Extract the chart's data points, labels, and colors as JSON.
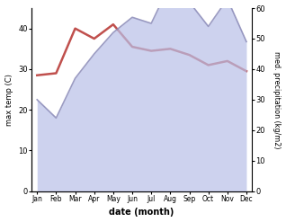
{
  "months": [
    "Jan",
    "Feb",
    "Mar",
    "Apr",
    "May",
    "Jun",
    "Jul",
    "Aug",
    "Sep",
    "Oct",
    "Nov",
    "Dec"
  ],
  "month_indices": [
    0,
    1,
    2,
    3,
    4,
    5,
    6,
    7,
    8,
    9,
    10,
    11
  ],
  "temp_max": [
    28.5,
    29.0,
    40.0,
    37.5,
    41.0,
    35.5,
    34.5,
    35.0,
    33.5,
    31.0,
    32.0,
    29.5
  ],
  "precip": [
    30,
    24,
    37,
    45,
    52,
    57,
    55,
    68,
    62,
    54,
    63,
    49
  ],
  "temp_color": "#c0504d",
  "precip_line_color": "#9090bb",
  "precip_fill_color": "#b8c0e8",
  "temp_ylim": [
    0,
    45
  ],
  "precip_ylim": [
    0,
    60
  ],
  "temp_yticks": [
    0,
    10,
    20,
    30,
    40
  ],
  "precip_yticks": [
    0,
    10,
    20,
    30,
    40,
    50,
    60
  ],
  "xlabel": "date (month)",
  "ylabel_left": "max temp (C)",
  "ylabel_right": "med. precipitation (kg/m2)",
  "background_color": "#ffffff",
  "figsize": [
    3.18,
    2.47
  ],
  "dpi": 100
}
